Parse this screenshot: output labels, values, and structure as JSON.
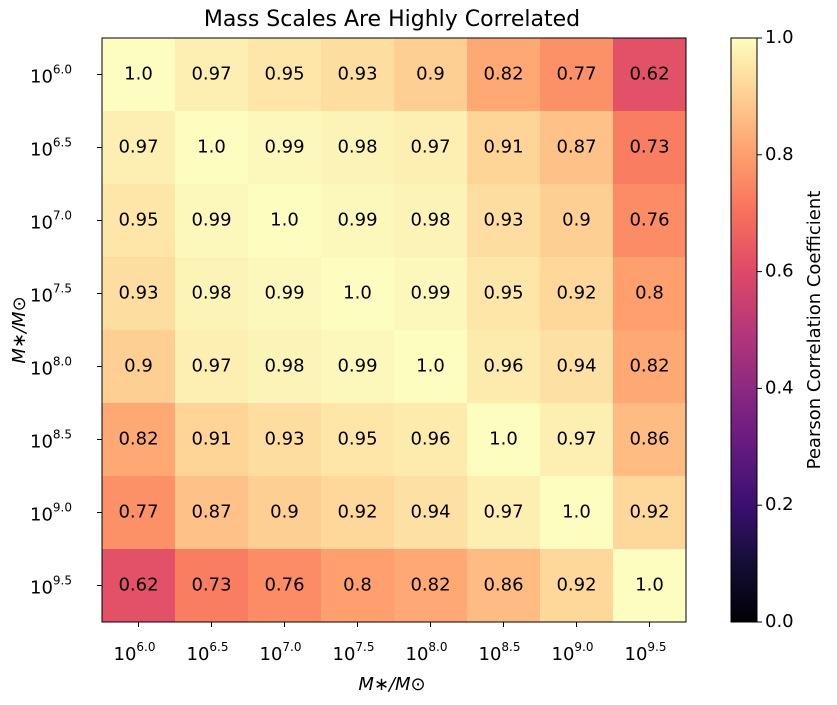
{
  "chart_data": {
    "type": "heatmap",
    "title": "Mass Scales Are Highly Correlated",
    "x_label": "M∗/M⊙",
    "y_label": "M∗/M⊙",
    "x_categories": [
      {
        "base": "10",
        "exponent": "6.0"
      },
      {
        "base": "10",
        "exponent": "6.5"
      },
      {
        "base": "10",
        "exponent": "7.0"
      },
      {
        "base": "10",
        "exponent": "7.5"
      },
      {
        "base": "10",
        "exponent": "8.0"
      },
      {
        "base": "10",
        "exponent": "8.5"
      },
      {
        "base": "10",
        "exponent": "9.0"
      },
      {
        "base": "10",
        "exponent": "9.5"
      }
    ],
    "y_categories": [
      {
        "base": "10",
        "exponent": "6.0"
      },
      {
        "base": "10",
        "exponent": "6.5"
      },
      {
        "base": "10",
        "exponent": "7.0"
      },
      {
        "base": "10",
        "exponent": "7.5"
      },
      {
        "base": "10",
        "exponent": "8.0"
      },
      {
        "base": "10",
        "exponent": "8.5"
      },
      {
        "base": "10",
        "exponent": "9.0"
      },
      {
        "base": "10",
        "exponent": "9.5"
      }
    ],
    "values": [
      [
        1,
        0.97,
        0.95,
        0.93,
        0.9,
        0.82,
        0.77,
        0.62
      ],
      [
        0.97,
        1,
        0.99,
        0.98,
        0.97,
        0.91,
        0.87,
        0.73
      ],
      [
        0.95,
        0.99,
        1,
        0.99,
        0.98,
        0.93,
        0.9,
        0.76
      ],
      [
        0.93,
        0.98,
        0.99,
        1,
        0.99,
        0.95,
        0.92,
        0.8
      ],
      [
        0.9,
        0.97,
        0.98,
        0.99,
        1,
        0.96,
        0.94,
        0.82
      ],
      [
        0.82,
        0.91,
        0.93,
        0.95,
        0.96,
        1,
        0.97,
        0.86
      ],
      [
        0.77,
        0.87,
        0.9,
        0.92,
        0.94,
        0.97,
        1,
        0.92
      ],
      [
        0.62,
        0.73,
        0.76,
        0.8,
        0.82,
        0.86,
        0.92,
        1
      ]
    ],
    "value_labels": [
      [
        "1.0",
        "0.97",
        "0.95",
        "0.93",
        "0.9",
        "0.82",
        "0.77",
        "0.62"
      ],
      [
        "0.97",
        "1.0",
        "0.99",
        "0.98",
        "0.97",
        "0.91",
        "0.87",
        "0.73"
      ],
      [
        "0.95",
        "0.99",
        "1.0",
        "0.99",
        "0.98",
        "0.93",
        "0.9",
        "0.76"
      ],
      [
        "0.93",
        "0.98",
        "0.99",
        "1.0",
        "0.99",
        "0.95",
        "0.92",
        "0.8"
      ],
      [
        "0.9",
        "0.97",
        "0.98",
        "0.99",
        "1.0",
        "0.96",
        "0.94",
        "0.82"
      ],
      [
        "0.82",
        "0.91",
        "0.93",
        "0.95",
        "0.96",
        "1.0",
        "0.97",
        "0.86"
      ],
      [
        "0.77",
        "0.87",
        "0.9",
        "0.92",
        "0.94",
        "0.97",
        "1.0",
        "0.92"
      ],
      [
        "0.62",
        "0.73",
        "0.76",
        "0.8",
        "0.82",
        "0.86",
        "0.92",
        "1.0"
      ]
    ],
    "colormap": "magma",
    "colorbar_label": "Pearson Correlation Coefficient",
    "clim": [
      0,
      1
    ],
    "cticks": [
      {
        "value": 0,
        "label": "0.0"
      },
      0.2,
      0.4,
      0.6,
      0.8,
      {
        "value": 1,
        "label": "1.0"
      }
    ]
  }
}
